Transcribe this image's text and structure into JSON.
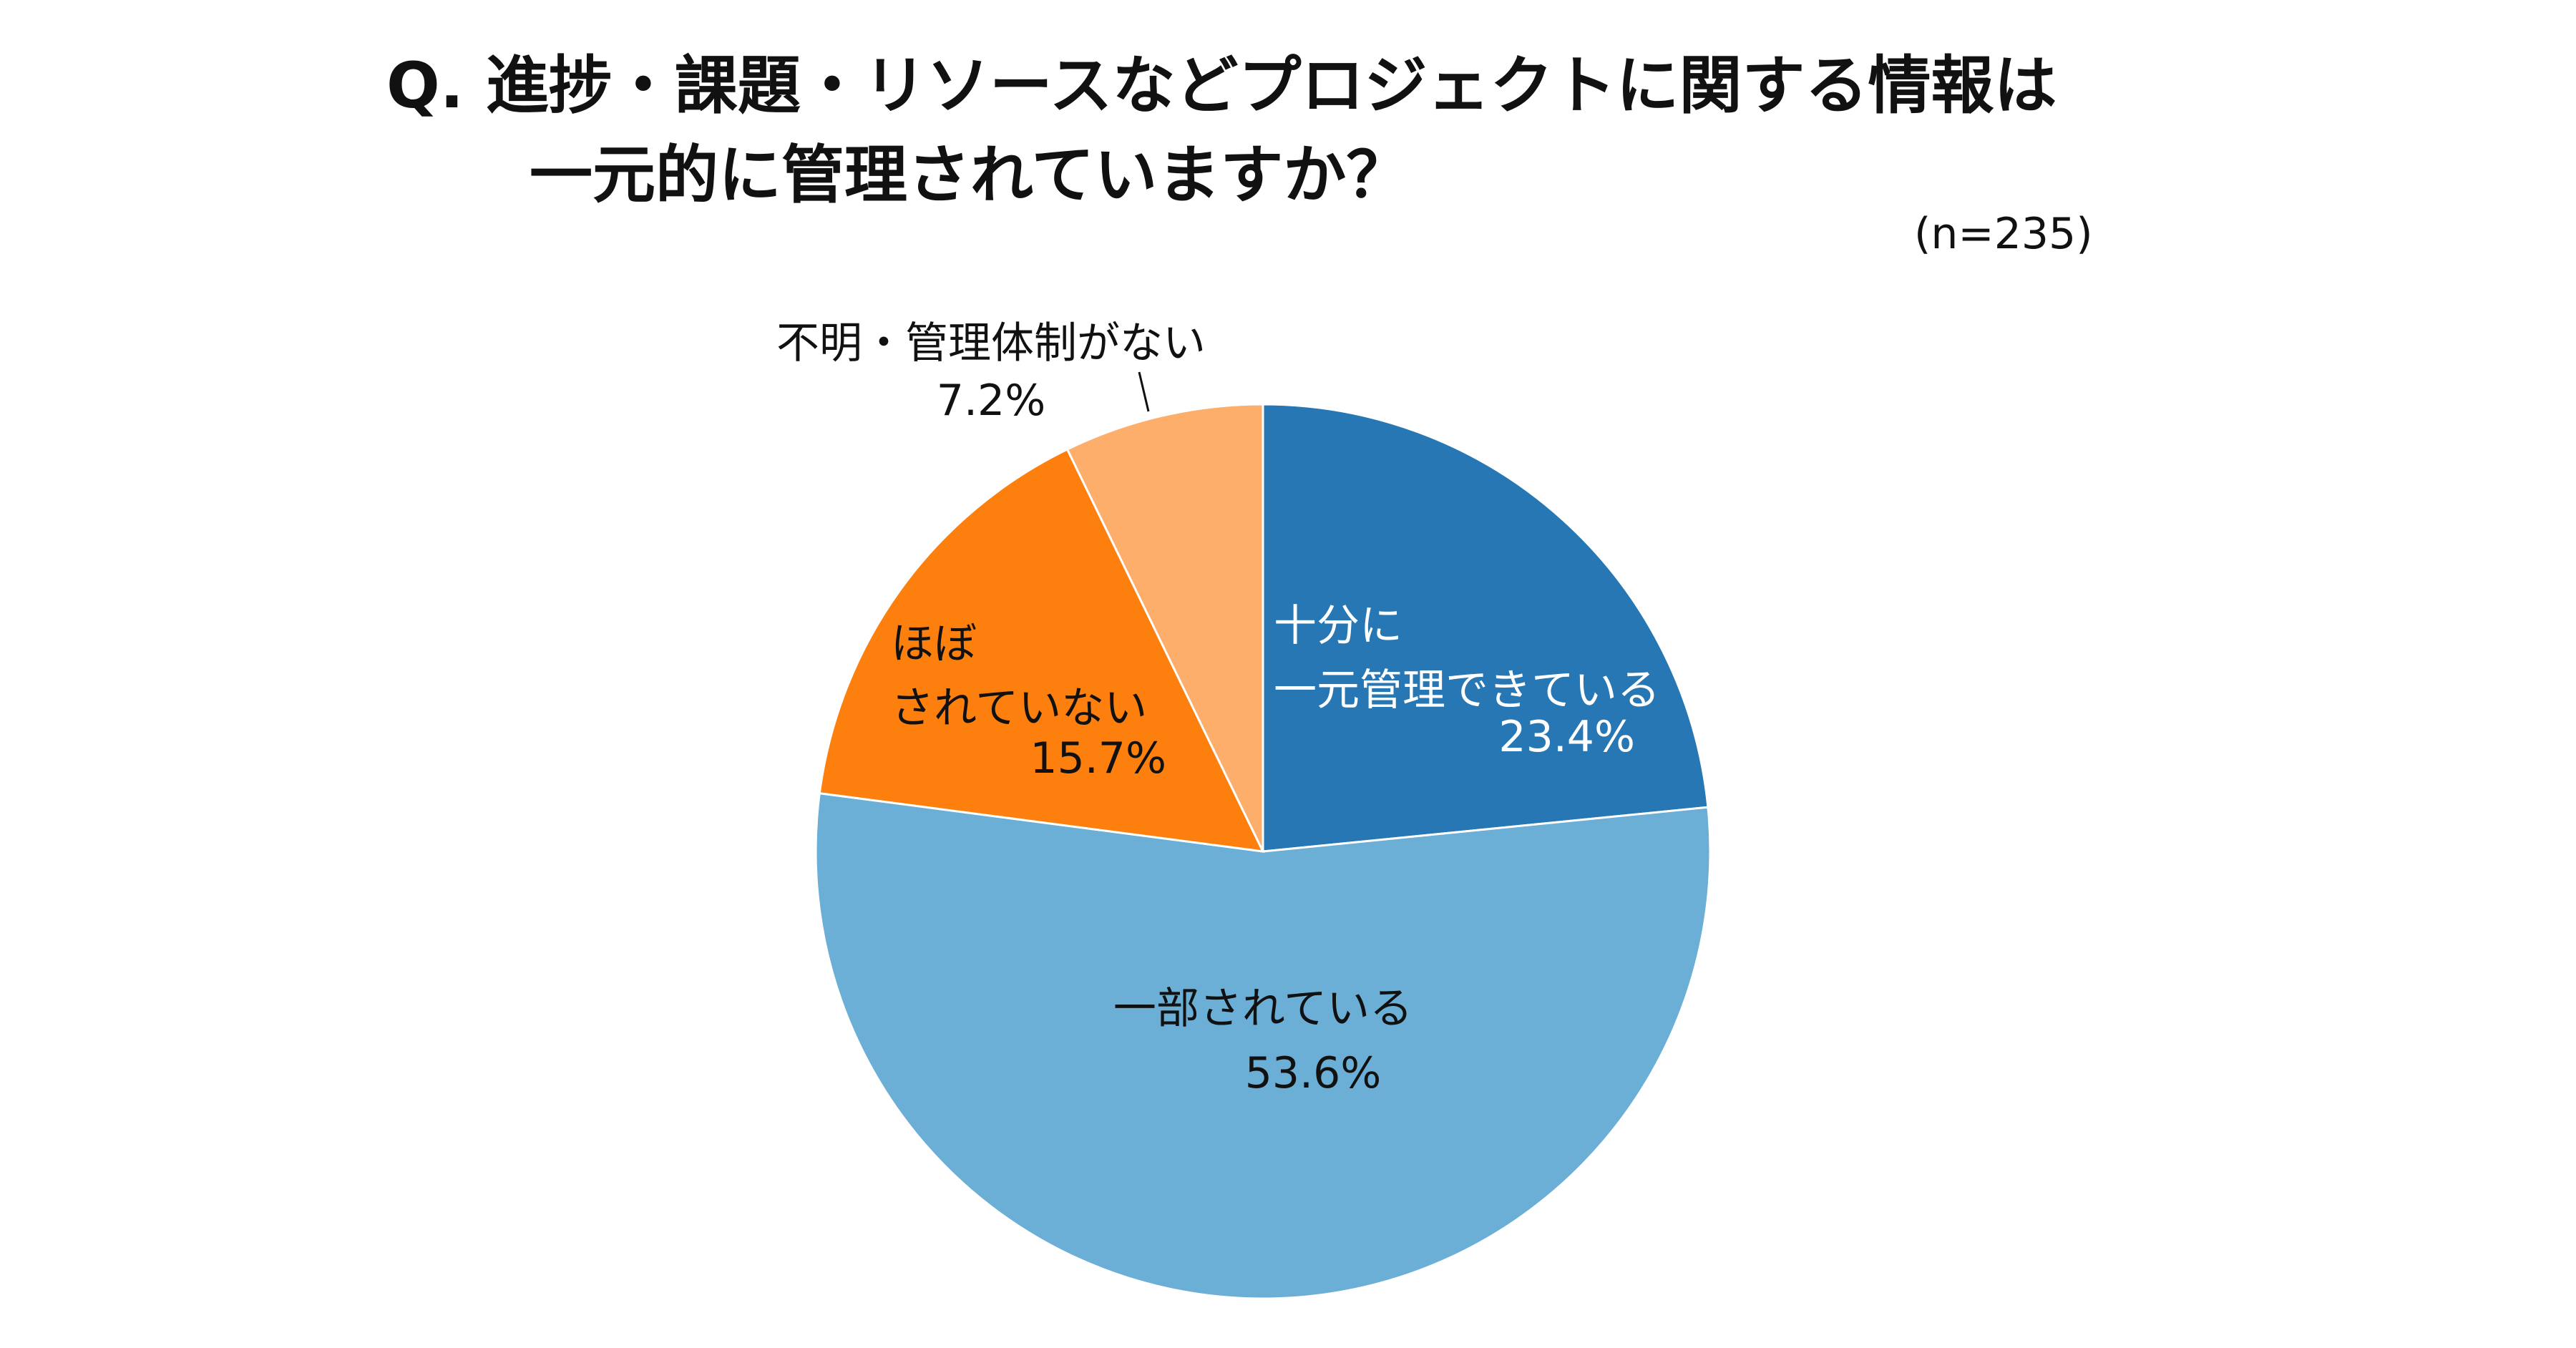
{
  "chart_data": {
    "type": "pie",
    "title_line1": "Q.  進捗・課題・リソースなどプロジェクトに関する情報は",
    "title_line2": "一元的に管理されていますか？",
    "sample_size": "(n=235)",
    "unit": "%",
    "start_angle_deg": 0,
    "direction": "clockwise",
    "slices": [
      {
        "label_lines": [
          "十分に",
          "一元管理できている"
        ],
        "value": 23.4,
        "value_text": "23.4%",
        "color": "#2677b4",
        "text_color": "#ffffff"
      },
      {
        "label_lines": [
          "一部されている"
        ],
        "value": 53.6,
        "value_text": "53.6%",
        "color": "#6baed6",
        "text_color": "#111111"
      },
      {
        "label_lines": [
          "ほぼ",
          "されていない"
        ],
        "value": 15.7,
        "value_text": "15.7%",
        "color": "#fd7f0e",
        "text_color": "#111111"
      },
      {
        "label_lines": [
          "不明・管理体制がない"
        ],
        "value": 7.2,
        "value_text": "7.2%",
        "color": "#fdae6b",
        "text_color": "#111111"
      }
    ]
  }
}
